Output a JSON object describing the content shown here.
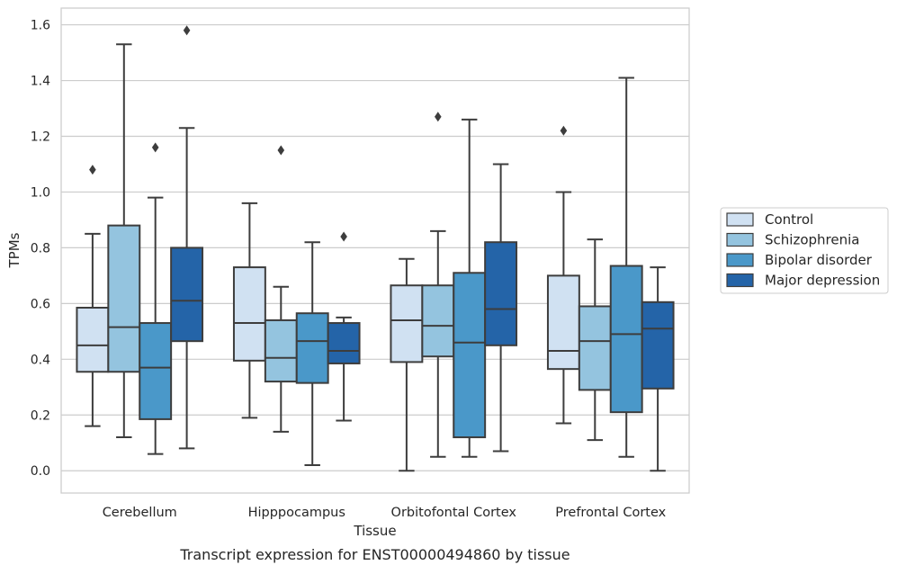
{
  "caption": "Transcript expression for ENST00000494860 by tissue",
  "chart_data": {
    "type": "box",
    "xlabel": "Tissue",
    "ylabel": "TPMs",
    "ylim": [
      -0.08,
      1.66
    ],
    "yticks": [
      "0.0",
      "0.2",
      "0.4",
      "0.6",
      "0.8",
      "1.0",
      "1.2",
      "1.4",
      "1.6"
    ],
    "grid": true,
    "legend_position": "right",
    "categories": [
      "Cerebellum",
      "Hipppocampus",
      "Orbitofontal Cortex",
      "Prefrontal Cortex"
    ],
    "series": [
      {
        "name": "Control",
        "color": "#d0e1f2",
        "boxes": [
          {
            "whislo": 0.16,
            "q1": 0.355,
            "med": 0.45,
            "q3": 0.585,
            "whishi": 0.85,
            "fliers": [
              1.08
            ]
          },
          {
            "whislo": 0.19,
            "q1": 0.395,
            "med": 0.53,
            "q3": 0.73,
            "whishi": 0.96,
            "fliers": []
          },
          {
            "whislo": 0.0,
            "q1": 0.39,
            "med": 0.54,
            "q3": 0.665,
            "whishi": 0.76,
            "fliers": []
          },
          {
            "whislo": 0.17,
            "q1": 0.365,
            "med": 0.43,
            "q3": 0.7,
            "whishi": 1.0,
            "fliers": [
              1.22
            ]
          }
        ]
      },
      {
        "name": "Schizophrenia",
        "color": "#94c4df",
        "boxes": [
          {
            "whislo": 0.12,
            "q1": 0.355,
            "med": 0.515,
            "q3": 0.88,
            "whishi": 1.53,
            "fliers": []
          },
          {
            "whislo": 0.14,
            "q1": 0.32,
            "med": 0.405,
            "q3": 0.54,
            "whishi": 0.66,
            "fliers": [
              1.15
            ]
          },
          {
            "whislo": 0.05,
            "q1": 0.41,
            "med": 0.52,
            "q3": 0.665,
            "whishi": 0.86,
            "fliers": [
              1.27
            ]
          },
          {
            "whislo": 0.11,
            "q1": 0.29,
            "med": 0.465,
            "q3": 0.59,
            "whishi": 0.83,
            "fliers": []
          }
        ]
      },
      {
        "name": "Bipolar disorder",
        "color": "#4a98c9",
        "boxes": [
          {
            "whislo": 0.06,
            "q1": 0.185,
            "med": 0.37,
            "q3": 0.53,
            "whishi": 0.98,
            "fliers": [
              1.16
            ]
          },
          {
            "whislo": 0.02,
            "q1": 0.315,
            "med": 0.465,
            "q3": 0.565,
            "whishi": 0.82,
            "fliers": []
          },
          {
            "whislo": 0.05,
            "q1": 0.12,
            "med": 0.46,
            "q3": 0.71,
            "whishi": 1.26,
            "fliers": []
          },
          {
            "whislo": 0.05,
            "q1": 0.21,
            "med": 0.49,
            "q3": 0.735,
            "whishi": 1.41,
            "fliers": []
          }
        ]
      },
      {
        "name": "Major depression",
        "color": "#2464a8",
        "boxes": [
          {
            "whislo": 0.08,
            "q1": 0.465,
            "med": 0.61,
            "q3": 0.8,
            "whishi": 1.23,
            "fliers": [
              1.58
            ]
          },
          {
            "whislo": 0.18,
            "q1": 0.385,
            "med": 0.43,
            "q3": 0.53,
            "whishi": 0.55,
            "fliers": [
              0.84
            ]
          },
          {
            "whislo": 0.07,
            "q1": 0.45,
            "med": 0.58,
            "q3": 0.82,
            "whishi": 1.1,
            "fliers": []
          },
          {
            "whislo": 0.0,
            "q1": 0.295,
            "med": 0.51,
            "q3": 0.605,
            "whishi": 0.73,
            "fliers": []
          }
        ]
      }
    ]
  }
}
